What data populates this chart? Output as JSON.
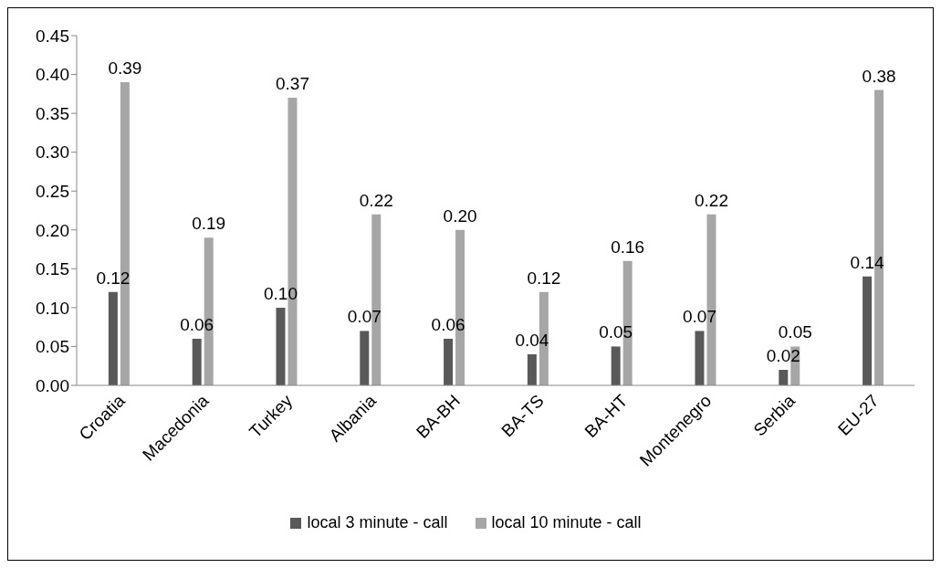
{
  "chart_data": {
    "type": "bar",
    "categories": [
      "Croatia",
      "Macedonia",
      "Turkey",
      "Albania",
      "BA-BH",
      "BA-TS",
      "BA-HT",
      "Montenegro",
      "Serbia",
      "EU-27"
    ],
    "series": [
      {
        "name": "local 3 minute - call",
        "color": "#595959",
        "values": [
          0.12,
          0.06,
          0.1,
          0.07,
          0.06,
          0.04,
          0.05,
          0.07,
          0.02,
          0.14
        ],
        "value_labels": [
          "0.12",
          "0.06",
          "0.10",
          "0.07",
          "0.06",
          "0.04",
          "0.05",
          "0.07",
          "0.02",
          "0.14"
        ]
      },
      {
        "name": "local 10 minute - call",
        "color": "#a6a6a6",
        "values": [
          0.39,
          0.19,
          0.37,
          0.22,
          0.2,
          0.12,
          0.16,
          0.22,
          0.05,
          0.38
        ],
        "value_labels": [
          "0.39",
          "0.19",
          "0.37",
          "0.22",
          "0.20",
          "0.12",
          "0.16",
          "0.22",
          "0.05",
          "0.38"
        ]
      }
    ],
    "ylim": [
      0,
      0.45
    ],
    "yticks": [
      {
        "value": 0,
        "label": "0.00"
      },
      {
        "value": 0.05,
        "label": "0.05"
      },
      {
        "value": 0.1,
        "label": "0.10"
      },
      {
        "value": 0.15,
        "label": "0.15"
      },
      {
        "value": 0.2,
        "label": "0.20"
      },
      {
        "value": 0.25,
        "label": "0.25"
      },
      {
        "value": 0.3,
        "label": "0.30"
      },
      {
        "value": 0.35,
        "label": "0.35"
      },
      {
        "value": 0.4,
        "label": "0.40"
      },
      {
        "value": 0.45,
        "label": "0.45"
      }
    ],
    "grid": false,
    "legend": "bottom"
  }
}
